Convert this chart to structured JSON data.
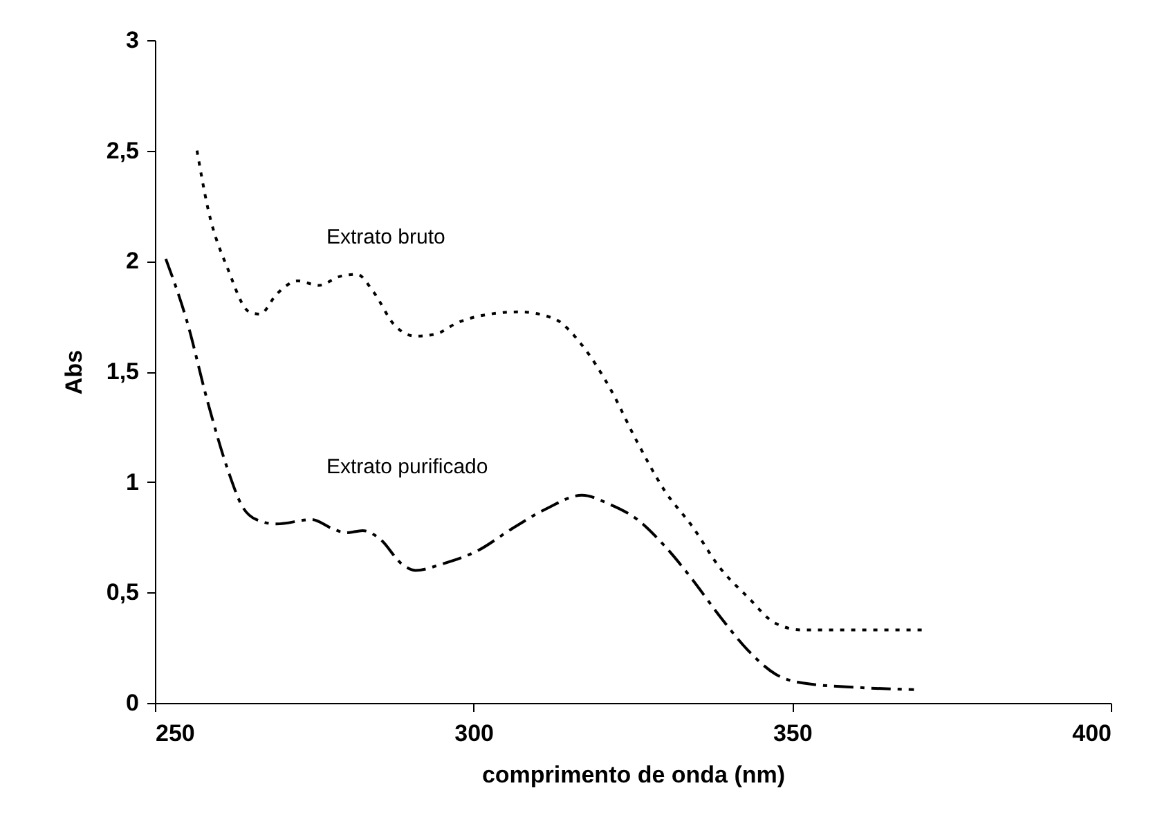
{
  "chart_data": {
    "type": "line",
    "xlabel": "comprimento de onda (nm)",
    "ylabel": "Abs",
    "xlim": [
      250,
      400
    ],
    "xticks": [
      250,
      300,
      350,
      400
    ],
    "ylim": [
      0,
      3
    ],
    "yticks": [
      0,
      {
        "value": 0.5,
        "label": "0,5"
      },
      1,
      {
        "value": 1.5,
        "label": "1,5"
      },
      2,
      {
        "value": 2.5,
        "label": "2,5"
      },
      3
    ],
    "grid": false,
    "marker": "none",
    "series": [
      {
        "name": "Extrato bruto",
        "color": "#000000",
        "line_style": "dotted",
        "x": [
          256.6,
          258.3,
          261.5,
          264.8,
          266.5,
          269.1,
          272.4,
          275.7,
          279,
          281.7,
          284.3,
          287.6,
          290.9,
          294.1,
          297.4,
          300.7,
          307.2,
          312.6,
          317,
          321.3,
          325.7,
          330,
          334.3,
          338.7,
          343,
          347.4,
          351.7,
          356.1,
          360.4,
          370.9
        ],
        "values": [
          2.5,
          2.24,
          1.96,
          1.77,
          1.76,
          1.85,
          1.91,
          1.89,
          1.93,
          1.94,
          1.86,
          1.71,
          1.66,
          1.67,
          1.72,
          1.75,
          1.77,
          1.74,
          1.62,
          1.43,
          1.18,
          0.96,
          0.8,
          0.61,
          0.48,
          0.36,
          0.33,
          0.33,
          0.33,
          0.33
        ]
      },
      {
        "name": "Extrato purificado",
        "color": "#000000",
        "line_style": "dashed",
        "x": [
          251.7,
          255,
          258.3,
          261.5,
          263.7,
          265.9,
          269.1,
          274.6,
          277.8,
          280,
          282.6,
          285.4,
          288.7,
          290.9,
          295.2,
          300.7,
          306.1,
          311.5,
          317,
          321.3,
          325.7,
          330,
          334.3,
          338.7,
          343,
          347.4,
          351.7,
          360.4,
          369.1
        ],
        "values": [
          2.01,
          1.73,
          1.36,
          1.05,
          0.89,
          0.83,
          0.81,
          0.83,
          0.79,
          0.77,
          0.78,
          0.74,
          0.63,
          0.6,
          0.63,
          0.69,
          0.79,
          0.88,
          0.94,
          0.9,
          0.83,
          0.71,
          0.56,
          0.39,
          0.24,
          0.13,
          0.09,
          0.07,
          0.06
        ]
      }
    ]
  }
}
